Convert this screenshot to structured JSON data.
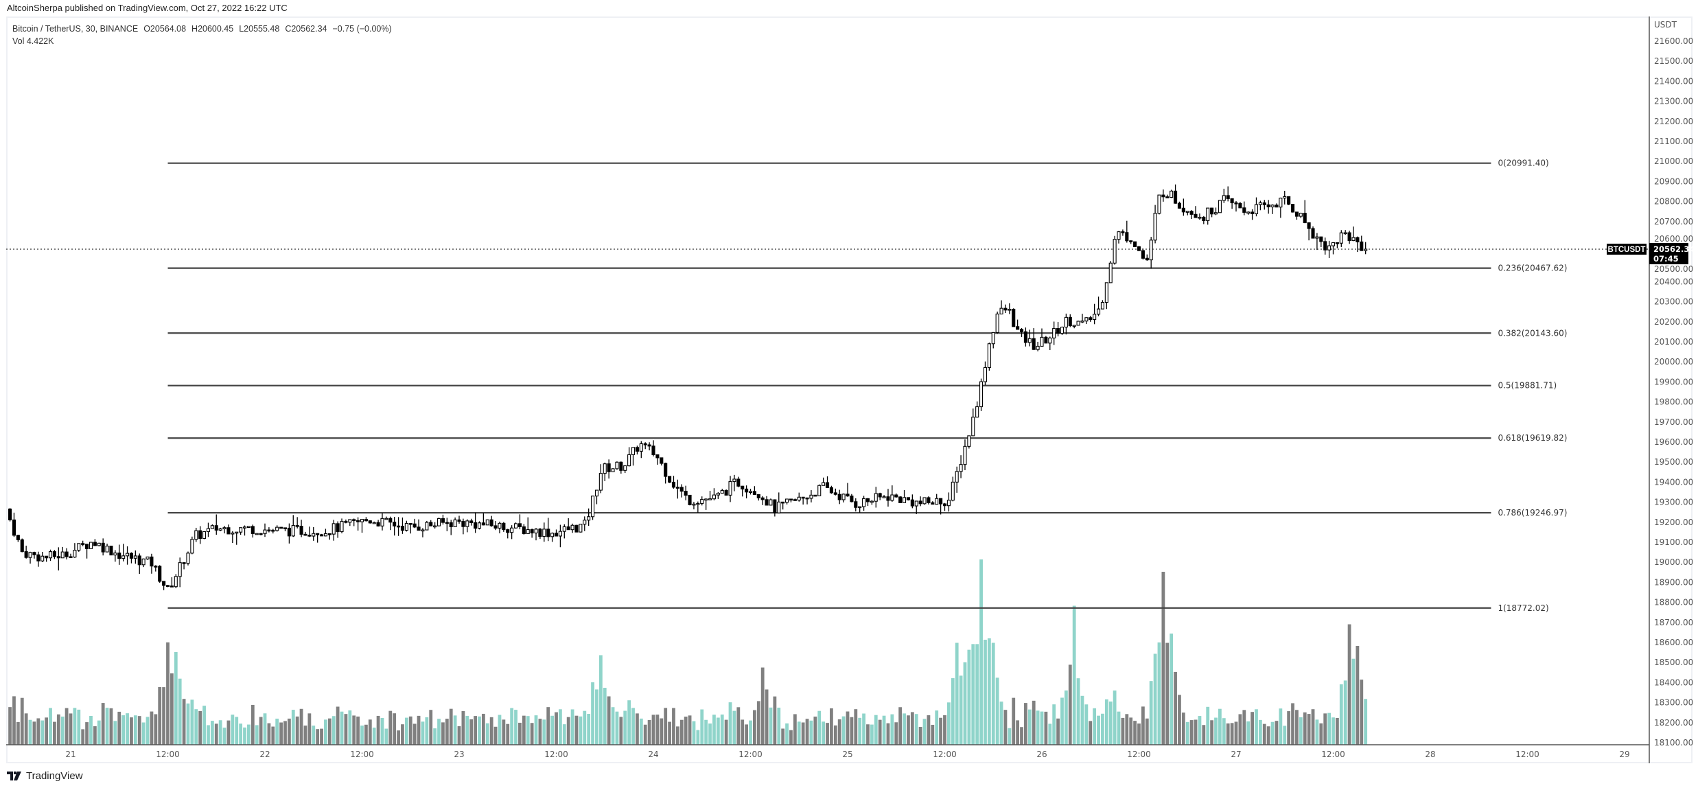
{
  "published": "AltcoinSherpa published on TradingView.com, Oct 27, 2022 16:22 UTC",
  "legend": {
    "symbol": "Bitcoin / TetherUS, 30, BINANCE",
    "open": "O20564.08",
    "high": "H20600.45",
    "low": "L20555.48",
    "close": "C20562.34",
    "change": "−0.75 (−0.00%)",
    "volume": "Vol  4.422K"
  },
  "price_axis": {
    "currency": "USDT",
    "ticks": [
      "21600.00",
      "21500.00",
      "21400.00",
      "21300.00",
      "21200.00",
      "21100.00",
      "21000.00",
      "20900.00",
      "20800.00",
      "20700.00",
      "20600.00",
      "20500.00",
      "20400.00",
      "20300.00",
      "20200.00",
      "20100.00",
      "20000.00",
      "19900.00",
      "19800.00",
      "19700.00",
      "19600.00",
      "19500.00",
      "19400.00",
      "19300.00",
      "19200.00",
      "19100.00",
      "19000.00",
      "18900.00",
      "18800.00",
      "18700.00",
      "18600.00",
      "18500.00",
      "18400.00",
      "18300.00",
      "18200.00",
      "18100.00"
    ],
    "last_symbol": "BTCUSDT",
    "last_price": "20562.34",
    "countdown": "07:45"
  },
  "time_axis": {
    "labels": [
      {
        "text": "21",
        "hours": 0
      },
      {
        "text": "12:00",
        "hours": 12
      },
      {
        "text": "22",
        "hours": 24
      },
      {
        "text": "12:00",
        "hours": 36
      },
      {
        "text": "23",
        "hours": 48
      },
      {
        "text": "12:00",
        "hours": 60
      },
      {
        "text": "24",
        "hours": 72
      },
      {
        "text": "12:00",
        "hours": 84
      },
      {
        "text": "25",
        "hours": 96
      },
      {
        "text": "12:00",
        "hours": 108
      },
      {
        "text": "26",
        "hours": 120
      },
      {
        "text": "12:00",
        "hours": 132
      },
      {
        "text": "27",
        "hours": 144
      },
      {
        "text": "12:00",
        "hours": 156
      },
      {
        "text": "28",
        "hours": 168
      },
      {
        "text": "12:00",
        "hours": 180
      },
      {
        "text": "29",
        "hours": 192
      }
    ]
  },
  "brand": "TradingView",
  "colors": {
    "up_volume": "#8fd4ca",
    "down_volume": "#808080",
    "candle": "#000000",
    "fib_line": "#444444"
  },
  "chart_data": {
    "type": "candlestick",
    "title": "Bitcoin / TetherUS, 30, BINANCE",
    "interval_hours": 0.5,
    "x_unit": "hours since Oct 21 00:00",
    "ylim": [
      18100,
      21600
    ],
    "fib_levels": [
      {
        "ratio": "0",
        "price": 20991.4,
        "label": "0(20991.40)"
      },
      {
        "ratio": "0.236",
        "price": 20467.62,
        "label": "0.236(20467.62)"
      },
      {
        "ratio": "0.382",
        "price": 20143.6,
        "label": "0.382(20143.60)"
      },
      {
        "ratio": "0.5",
        "price": 19881.71,
        "label": "0.5(19881.71)"
      },
      {
        "ratio": "0.618",
        "price": 19619.82,
        "label": "0.618(19619.82)"
      },
      {
        "ratio": "0.786",
        "price": 19246.97,
        "label": "0.786(19246.97)"
      },
      {
        "ratio": "1",
        "price": 18772.02,
        "label": "1(18772.02)"
      }
    ],
    "fib_range_hours": [
      12,
      175.5
    ],
    "close_path": [
      [
        -7.5,
        19212
      ],
      [
        -6,
        19050
      ],
      [
        -3.3,
        19023
      ],
      [
        -0.7,
        19040
      ],
      [
        2.7,
        19104
      ],
      [
        6,
        19040
      ],
      [
        10,
        18996
      ],
      [
        12,
        18860
      ],
      [
        13.4,
        18969
      ],
      [
        15.4,
        19131
      ],
      [
        18,
        19169
      ],
      [
        22,
        19169
      ],
      [
        26,
        19158
      ],
      [
        31.5,
        19158
      ],
      [
        36.8,
        19212
      ],
      [
        42,
        19175
      ],
      [
        47.5,
        19202
      ],
      [
        53,
        19180
      ],
      [
        59.6,
        19147
      ],
      [
        63.6,
        19185
      ],
      [
        65.6,
        19466
      ],
      [
        68.3,
        19482
      ],
      [
        70.3,
        19590
      ],
      [
        72.3,
        19536
      ],
      [
        74.3,
        19401
      ],
      [
        76.3,
        19310
      ],
      [
        79.7,
        19320
      ],
      [
        82.3,
        19401
      ],
      [
        85,
        19347
      ],
      [
        87,
        19266
      ],
      [
        90.4,
        19320
      ],
      [
        93,
        19374
      ],
      [
        97,
        19293
      ],
      [
        101,
        19330
      ],
      [
        105,
        19293
      ],
      [
        108.5,
        19310
      ],
      [
        109.8,
        19482
      ],
      [
        111.4,
        19698
      ],
      [
        112.5,
        19887
      ],
      [
        113.4,
        20077
      ],
      [
        114.5,
        20239
      ],
      [
        115.8,
        20266
      ],
      [
        117.2,
        20131
      ],
      [
        119.2,
        20077
      ],
      [
        121.2,
        20131
      ],
      [
        123.2,
        20212
      ],
      [
        125.2,
        20185
      ],
      [
        127.2,
        20266
      ],
      [
        128.5,
        20509
      ],
      [
        129.2,
        20644
      ],
      [
        131.2,
        20617
      ],
      [
        132.6,
        20509
      ],
      [
        133.2,
        20509
      ],
      [
        134.3,
        20806
      ],
      [
        135.2,
        20860
      ],
      [
        137.2,
        20779
      ],
      [
        140,
        20725
      ],
      [
        142.6,
        20806
      ],
      [
        145.3,
        20752
      ],
      [
        148,
        20779
      ],
      [
        150,
        20806
      ],
      [
        152,
        20725
      ],
      [
        154,
        20617
      ],
      [
        155.4,
        20563
      ],
      [
        157.3,
        20644
      ],
      [
        159.3,
        20590
      ],
      [
        160,
        20562
      ]
    ],
    "volume_spikes": [
      [
        12,
        330
      ],
      [
        13,
        300
      ],
      [
        65.6,
        290
      ],
      [
        85.5,
        250
      ],
      [
        109.5,
        330
      ],
      [
        111,
        300
      ],
      [
        112.5,
        600
      ],
      [
        114,
        330
      ],
      [
        124,
        450
      ],
      [
        135,
        560
      ],
      [
        136,
        360
      ],
      [
        158,
        390
      ],
      [
        159,
        320
      ]
    ]
  }
}
